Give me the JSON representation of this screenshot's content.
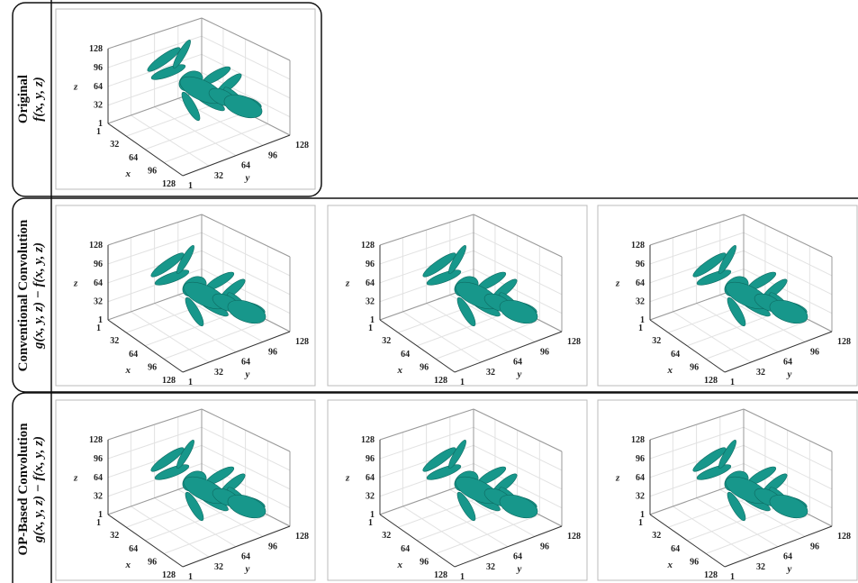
{
  "rows": [
    {
      "title": "Original",
      "formula": "f(x, y, z)"
    },
    {
      "title": "Conventional Convolution",
      "formula": "g(x, y, z) − f(x, y, z)"
    },
    {
      "title": "OP-Based Convolution",
      "formula": "g(x, y, z) − f(x, y, z)"
    }
  ],
  "axes": {
    "ticks": [
      1,
      32,
      64,
      96,
      128
    ],
    "x_label": "x",
    "y_label": "y",
    "z_label": "z"
  }
}
